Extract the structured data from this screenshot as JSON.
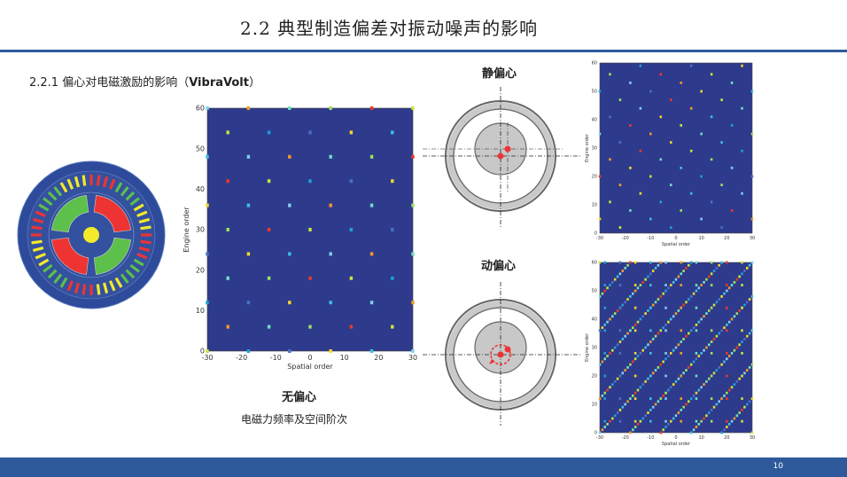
{
  "slide": {
    "title": "2.2 典型制造偏差对振动噪声的影响",
    "subtitle_prefix": "2.2.1 偏心对电磁激励的影响（",
    "subtitle_brand": "VibraVolt",
    "subtitle_suffix": "）",
    "page_number": "10"
  },
  "labels": {
    "no_ecc": "无偏心",
    "static_ecc": "静偏心",
    "dynamic_ecc": "动偏心",
    "caption": "电磁力频率及空间阶次"
  },
  "colors": {
    "heatmap_bg": "#2e3a8c",
    "accent_blue": "#2e5a9c",
    "motor_green": "#5cc04a",
    "motor_red": "#ee3333",
    "motor_yellow": "#f2ea2a"
  },
  "chart_data": [
    {
      "type": "heatmap",
      "name": "no-eccentricity",
      "xlabel": "Spatial order",
      "ylabel": "Engine order",
      "xlim": [
        -30,
        30
      ],
      "ylim": [
        0,
        60
      ],
      "xticks": [
        "-30",
        "-20",
        "-10",
        "0",
        "10",
        "20",
        "30"
      ],
      "yticks": [
        "0",
        "10",
        "20",
        "30",
        "40",
        "50",
        "60"
      ]
    },
    {
      "type": "heatmap",
      "name": "static-eccentricity",
      "xlabel": "Spatial order",
      "ylabel": "Engine order",
      "xlim": [
        -30,
        30
      ],
      "ylim": [
        0,
        60
      ],
      "xticks": [
        "-30",
        "-20",
        "-10",
        "0",
        "10",
        "20",
        "30"
      ],
      "yticks": [
        "0",
        "10",
        "20",
        "30",
        "40",
        "50",
        "60"
      ]
    },
    {
      "type": "heatmap",
      "name": "dynamic-eccentricity",
      "xlabel": "Spatial order",
      "ylabel": "Engine order",
      "xlim": [
        -30,
        30
      ],
      "ylim": [
        0,
        60
      ],
      "xticks": [
        "-30",
        "-20",
        "-10",
        "0",
        "10",
        "20",
        "30"
      ],
      "yticks": [
        "0",
        "10",
        "20",
        "30",
        "40",
        "50",
        "60"
      ]
    }
  ]
}
